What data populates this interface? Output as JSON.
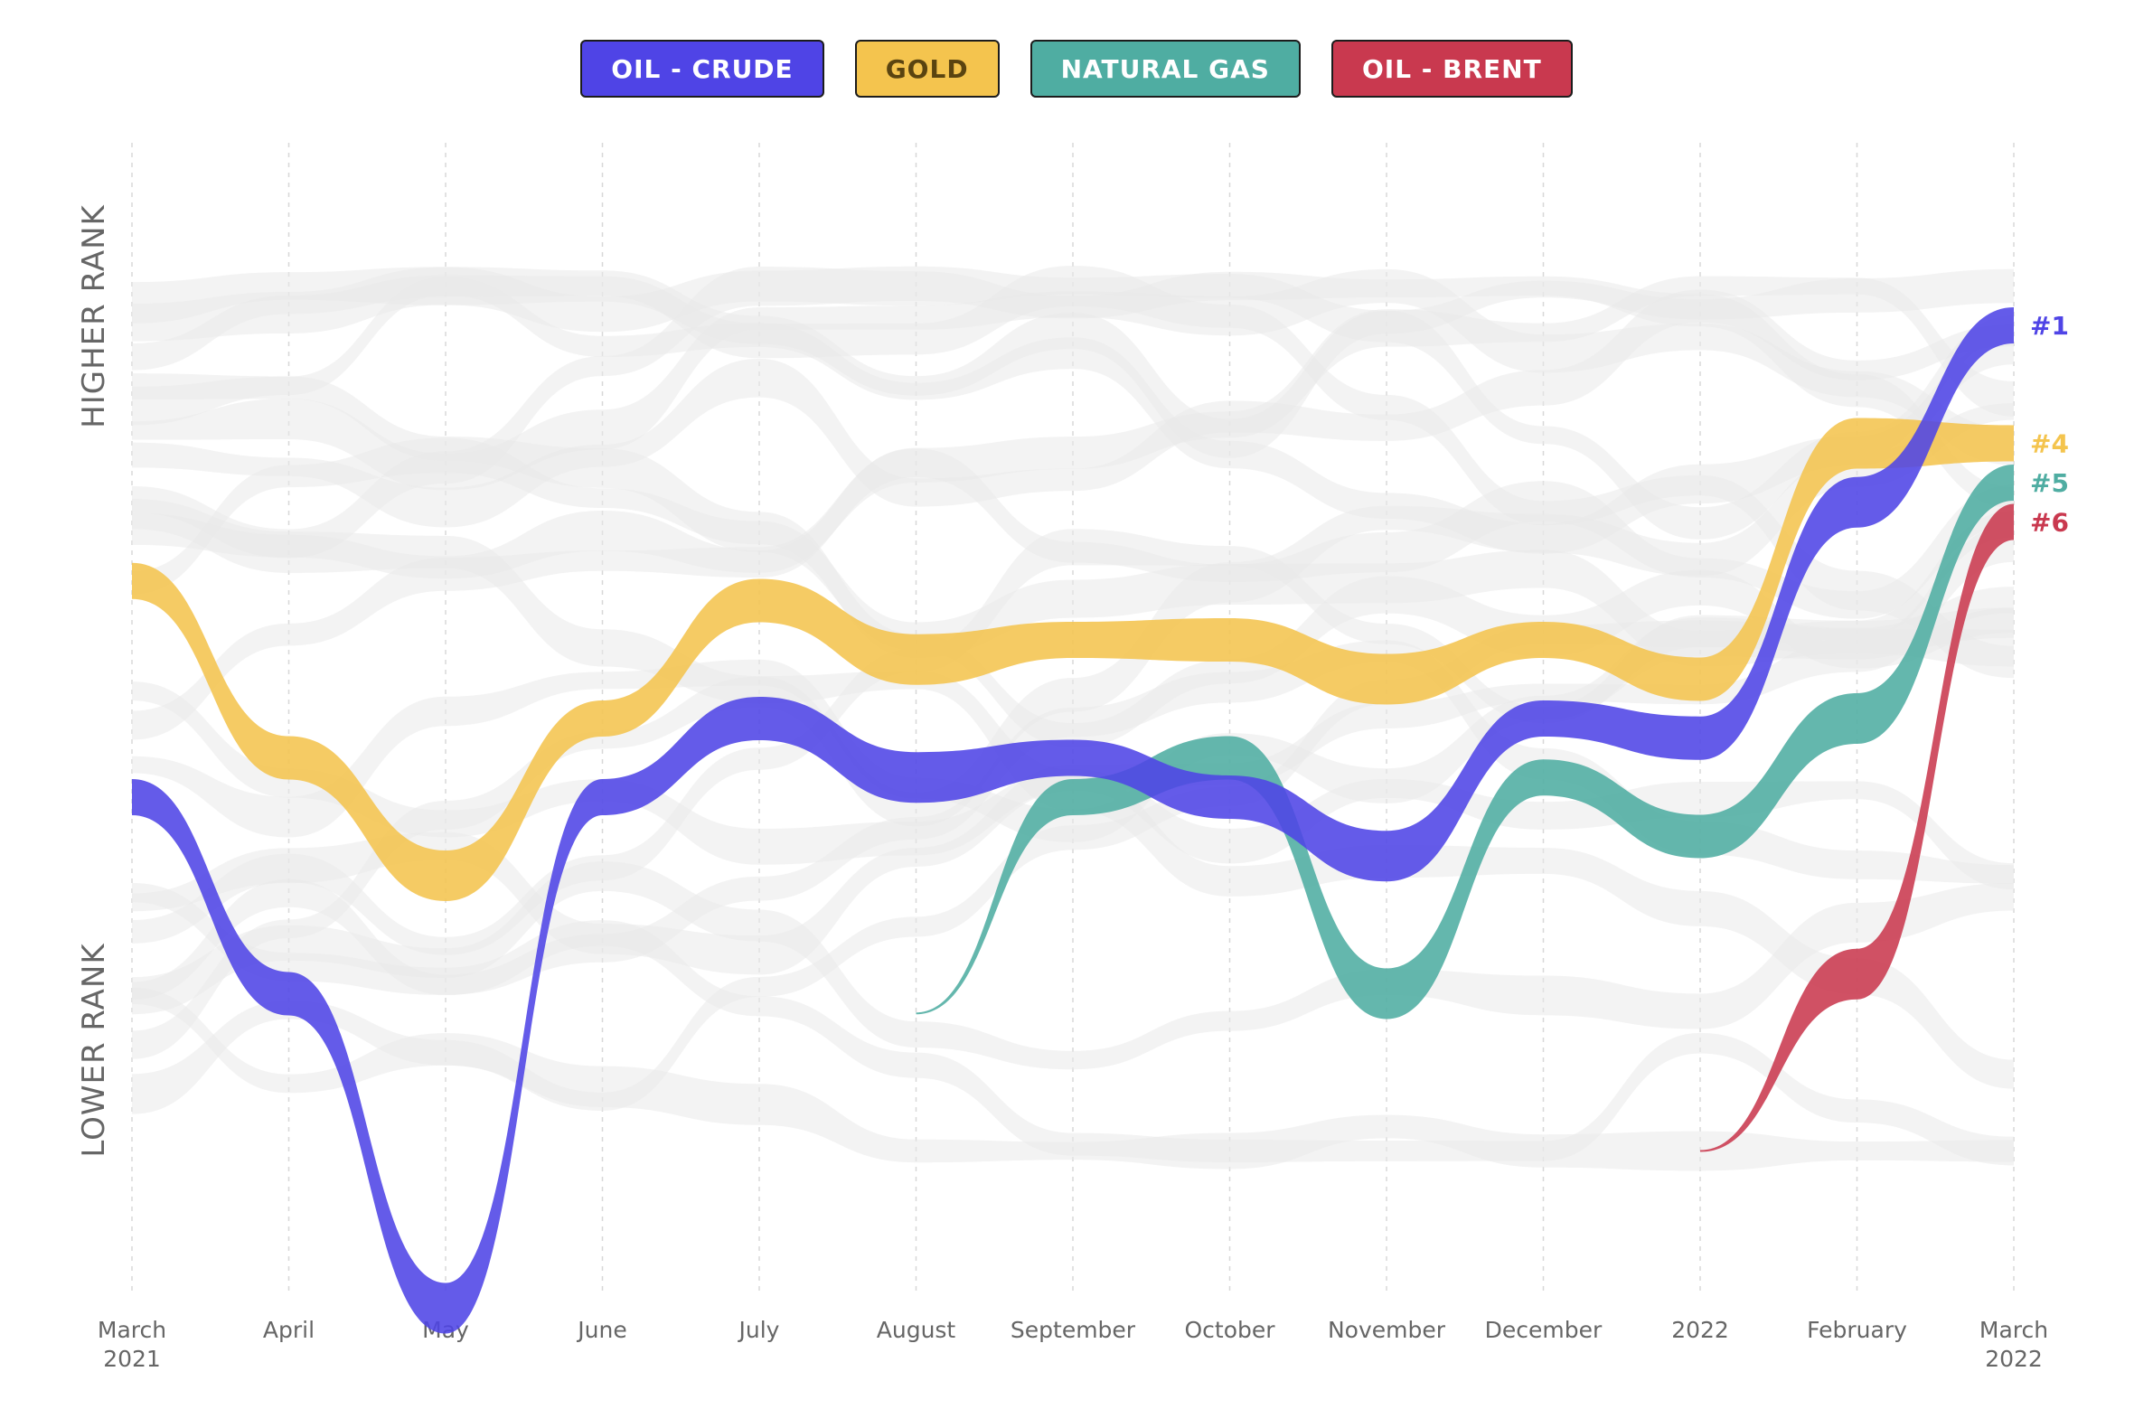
{
  "legend": [
    {
      "label": "OIL - CRUDE",
      "color": "#4f44e6",
      "text_color": "#ffffff"
    },
    {
      "label": "GOLD",
      "color": "#f4c44e",
      "text_color": "#5a4410"
    },
    {
      "label": "NATURAL GAS",
      "color": "#4fada2",
      "text_color": "#ffffff"
    },
    {
      "label": "OIL - BRENT",
      "color": "#c9394f",
      "text_color": "#ffffff"
    }
  ],
  "y_labels": {
    "top": "HIGHER RANK",
    "bottom": "LOWER RANK"
  },
  "chart_data": {
    "type": "line",
    "x": [
      [
        "March",
        "2021"
      ],
      [
        "April"
      ],
      [
        "May"
      ],
      [
        "June"
      ],
      [
        "July"
      ],
      [
        "August"
      ],
      [
        "September"
      ],
      [
        "October"
      ],
      [
        "November"
      ],
      [
        "December"
      ],
      [
        "2022"
      ],
      [
        "February"
      ],
      [
        "March",
        "2022"
      ]
    ],
    "series": [
      {
        "name": "OIL - CRUDE",
        "color": "#4f44e6",
        "end_label": "#1",
        "values": [
          13,
          18,
          26,
          13,
          11,
          12.5,
          12,
          13,
          14.5,
          11,
          11.5,
          5.5,
          1
        ]
      },
      {
        "name": "GOLD",
        "color": "#f4c44e",
        "end_label": "#4",
        "values": [
          7.5,
          12,
          15,
          11,
          8,
          9.5,
          9,
          9,
          10,
          9,
          10,
          4,
          4
        ]
      },
      {
        "name": "NATURAL GAS",
        "color": "#4fada2",
        "end_label": "#5",
        "values": [
          null,
          null,
          null,
          null,
          null,
          18.5,
          13,
          12,
          18,
          12.5,
          14,
          11,
          5
        ]
      },
      {
        "name": "OIL - BRENT",
        "color": "#c9394f",
        "end_label": "#6",
        "values": [
          null,
          null,
          null,
          null,
          null,
          null,
          null,
          null,
          null,
          null,
          22,
          17.5,
          6
        ]
      }
    ]
  }
}
